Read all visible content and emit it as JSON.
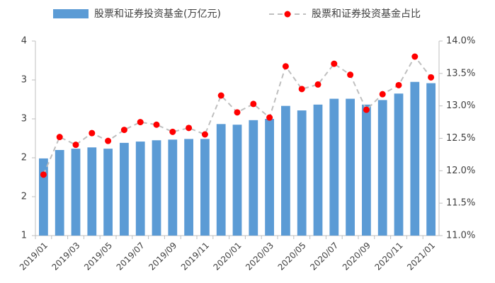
{
  "chart_data": {
    "type": "bar-line",
    "categories": [
      "2019/01",
      null,
      "2019/03",
      null,
      "2019/05",
      null,
      "2019/07",
      null,
      "2019/09",
      null,
      "2019/11",
      null,
      "2020/01",
      null,
      "2020/03",
      null,
      "2020/05",
      null,
      "2020/07",
      null,
      "2020/09",
      null,
      "2020/11",
      null,
      "2021/01"
    ],
    "series": [
      {
        "name": "股票和证券投资基金(万亿元)",
        "type": "bar",
        "color": "#5b9bd5",
        "values": [
          2.19,
          2.32,
          2.34,
          2.36,
          2.34,
          2.43,
          2.45,
          2.47,
          2.48,
          2.49,
          2.49,
          2.72,
          2.71,
          2.78,
          2.8,
          3.0,
          2.93,
          3.02,
          3.11,
          3.11,
          3.02,
          3.09,
          3.19,
          3.37,
          3.35
        ]
      },
      {
        "name": "股票和证券投资基金占比",
        "type": "line",
        "axis": "y2",
        "color": "#bfbfbf",
        "marker_color": "#ff0000",
        "dashed": true,
        "values": [
          11.94,
          12.52,
          12.4,
          12.58,
          12.46,
          12.63,
          12.75,
          12.71,
          12.6,
          12.66,
          12.56,
          13.16,
          12.9,
          13.03,
          12.82,
          13.61,
          13.26,
          13.33,
          13.65,
          13.48,
          12.94,
          13.18,
          13.32,
          13.76,
          13.44
        ]
      }
    ],
    "ylim": [
      1,
      4
    ],
    "yticks": [
      1,
      {
        "value": 1.6,
        "label": "2"
      },
      {
        "value": 2.2,
        "label": "2"
      },
      {
        "value": 2.8,
        "label": "3"
      },
      {
        "value": 3.4,
        "label": "3"
      },
      4
    ],
    "y2lim": [
      11,
      14
    ],
    "y2ticks": [
      {
        "value": 11,
        "label": "11.0%"
      },
      {
        "value": 11.5,
        "label": "11.5%"
      },
      {
        "value": 12,
        "label": "12.0%"
      },
      {
        "value": 12.5,
        "label": "12.5%"
      },
      {
        "value": 13,
        "label": "13.0%"
      },
      {
        "value": 13.5,
        "label": "13.5%"
      },
      {
        "value": 14,
        "label": "14.0%"
      }
    ],
    "legend": "top"
  }
}
